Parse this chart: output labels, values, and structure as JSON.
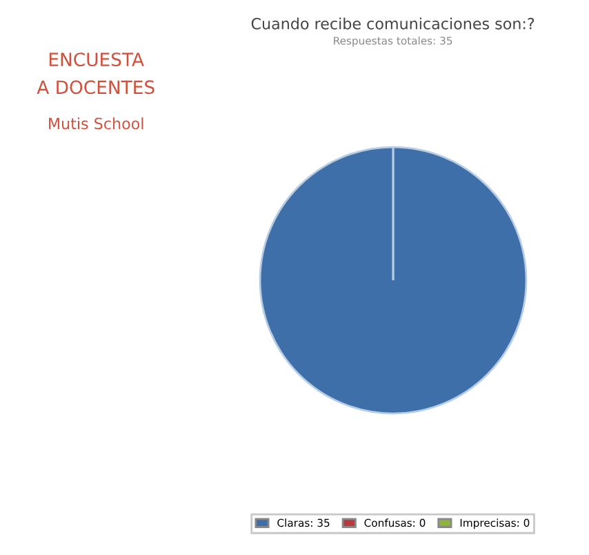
{
  "chart_data": {
    "type": "pie",
    "title": "Cuando recibe comunicaciones son:?",
    "subtitle": "Respuestas totales: 35",
    "categories": [
      "Claras",
      "Confusas",
      "Imprecisas"
    ],
    "values": [
      35,
      0,
      0
    ],
    "value_labels": [
      "35",
      "0",
      "0"
    ],
    "colors": [
      "#3f6fa8",
      "#b83a3c",
      "#8cb43c"
    ],
    "legend": "bottom",
    "annotations": [
      "ENCUESTA",
      "A DOCENTES",
      "Mutis School"
    ]
  }
}
